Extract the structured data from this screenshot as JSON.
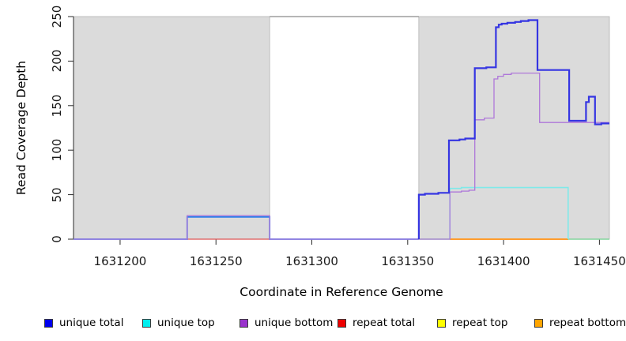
{
  "chart_data": {
    "type": "line",
    "subtype": "step-coverage",
    "title": "",
    "xlabel": "Coordinate in Reference Genome",
    "ylabel": "Read Coverage Depth",
    "xlim": [
      1631175.7,
      1631455.2
    ],
    "ylim": [
      0,
      250
    ],
    "x_ticks": [
      1631200,
      1631250,
      1631300,
      1631350,
      1631400,
      1631450
    ],
    "y_ticks": [
      0,
      50,
      100,
      150,
      200,
      250
    ],
    "grid": "off",
    "legend_position": "bottom",
    "shaded_regions": [
      {
        "name": "repeat-region-left",
        "x_start": 1631175.7,
        "x_end": 1631278,
        "fill": "#dbdbdb",
        "border": "#aaaaaa"
      },
      {
        "name": "repeat-region-right",
        "x_start": 1631355.8,
        "x_end": 1631455.2,
        "fill": "#dbdbdb",
        "border": "#aaaaaa"
      }
    ],
    "gap_top_line": {
      "x_start": 1631278,
      "x_end": 1631355.8,
      "y_value": 250,
      "color": "#8a8a8a"
    },
    "series": [
      {
        "name": "repeat-total",
        "legend": "repeat total",
        "color": "#dd5555",
        "width": 1.3,
        "steps": [
          [
            1631235,
            0
          ],
          [
            1631278,
            0
          ]
        ]
      },
      {
        "name": "zero-line-green-left",
        "legend": null,
        "color": "#82d49b",
        "width": 1.6,
        "steps": [
          [
            1631355.8,
            0
          ],
          [
            1631372,
            0
          ]
        ]
      },
      {
        "name": "repeat-bottom",
        "legend": "repeat bottom",
        "color": "#ff9d2e",
        "width": 2,
        "steps": [
          [
            1631372,
            0
          ],
          [
            1631433.7,
            0
          ]
        ]
      },
      {
        "name": "zero-line-green-right",
        "legend": null,
        "color": "#82d49b",
        "width": 1.6,
        "steps": [
          [
            1631433.7,
            0
          ],
          [
            1631455.2,
            0
          ]
        ]
      },
      {
        "name": "unique-top",
        "legend": "unique top",
        "color": "#7fe9e9",
        "width": 1.6,
        "steps": [
          [
            1631372,
            0
          ],
          [
            1631372,
            57
          ],
          [
            1631378,
            58
          ],
          [
            1631433.7,
            58
          ],
          [
            1631433.7,
            0
          ]
        ]
      },
      {
        "name": "unique-total-left",
        "legend": "unique total",
        "color": "#2d7dea",
        "width": 1.8,
        "steps": [
          [
            1631175.7,
            0
          ],
          [
            1631235,
            25
          ],
          [
            1631278,
            0
          ],
          [
            1631355.8,
            0
          ]
        ]
      },
      {
        "name": "unique-bottom",
        "legend": "unique bottom",
        "color": "#ae77d9",
        "width": 1.3,
        "steps": [
          [
            1631175.7,
            0
          ],
          [
            1631235,
            26.5
          ],
          [
            1631278,
            0
          ],
          [
            1631372,
            0
          ],
          [
            1631372,
            53
          ],
          [
            1631378,
            54
          ],
          [
            1631382,
            55
          ],
          [
            1631385,
            134
          ],
          [
            1631390,
            136
          ],
          [
            1631395,
            180
          ],
          [
            1631397,
            183
          ],
          [
            1631400,
            185
          ],
          [
            1631404,
            186.5
          ],
          [
            1631418.8,
            131
          ],
          [
            1631455.2,
            131
          ]
        ]
      },
      {
        "name": "unique-total-right",
        "legend": "unique total",
        "color": "#3535e2",
        "width": 2.2,
        "steps": [
          [
            1631355.8,
            0
          ],
          [
            1631355.8,
            50
          ],
          [
            1631359,
            51
          ],
          [
            1631366,
            52
          ],
          [
            1631371.5,
            111
          ],
          [
            1631377,
            112
          ],
          [
            1631380,
            113
          ],
          [
            1631385,
            192
          ],
          [
            1631391,
            193
          ],
          [
            1631396,
            238
          ],
          [
            1631397.5,
            241
          ],
          [
            1631399,
            242
          ],
          [
            1631402,
            243
          ],
          [
            1631406,
            244
          ],
          [
            1631409,
            245
          ],
          [
            1631413,
            246
          ],
          [
            1631417.7,
            190
          ],
          [
            1631434.2,
            133
          ],
          [
            1631443,
            154
          ],
          [
            1631444.5,
            160
          ],
          [
            1631447.7,
            129
          ],
          [
            1631451,
            130
          ],
          [
            1631455.2,
            130
          ]
        ]
      }
    ],
    "legend": [
      {
        "label": "unique total",
        "color": "#0000ee"
      },
      {
        "label": "unique top",
        "color": "#00eeee"
      },
      {
        "label": "unique bottom",
        "color": "#9932cc"
      },
      {
        "label": "repeat total",
        "color": "#ee0000"
      },
      {
        "label": "repeat top",
        "color": "#ffff00"
      },
      {
        "label": "repeat bottom",
        "color": "#ffa500"
      }
    ]
  }
}
